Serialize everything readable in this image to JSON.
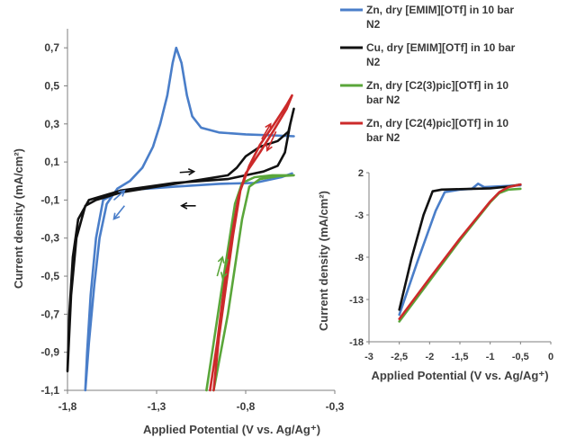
{
  "chart_data": [
    {
      "type": "line",
      "xlabel": "Applied Potential (V vs. Ag/Ag⁺)",
      "ylabel": "Current density (mA/cm²)",
      "xlim": [
        -1.8,
        -0.3
      ],
      "ylim": [
        -1.1,
        0.8
      ],
      "x_ticks": [
        -1.8,
        -1.3,
        -0.8,
        -0.3
      ],
      "x_tick_labels": [
        "-1,8",
        "-1,3",
        "-0,8",
        "-0,3"
      ],
      "y_ticks": [
        0.7,
        0.5,
        0.3,
        0.1,
        -0.1,
        -0.3,
        -0.5,
        -0.7,
        -0.9,
        -1.1
      ],
      "y_tick_labels": [
        "0,7",
        "0,5",
        "0,3",
        "0,1",
        "-0,1",
        "-0,3",
        "-0,5",
        "-0,7",
        "-0,9",
        "-1,1"
      ],
      "grid": false,
      "legend_position": "top-right",
      "series": [
        {
          "name": "Zn, dry [EMIM][OTf] in 10 bar N2",
          "color": "#4a7ec9",
          "points": [
            [
              -0.54,
              0.04
            ],
            [
              -0.6,
              0.02
            ],
            [
              -0.75,
              -0.01
            ],
            [
              -0.95,
              -0.015
            ],
            [
              -1.2,
              -0.03
            ],
            [
              -1.5,
              -0.05
            ],
            [
              -1.6,
              -0.1
            ],
            [
              -1.64,
              -0.3
            ],
            [
              -1.67,
              -0.6
            ],
            [
              -1.69,
              -0.9
            ],
            [
              -1.7,
              -1.1
            ],
            [
              -1.68,
              -0.85
            ],
            [
              -1.65,
              -0.55
            ],
            [
              -1.62,
              -0.3
            ],
            [
              -1.58,
              -0.12
            ],
            [
              -1.52,
              -0.04
            ],
            [
              -1.45,
              0.0
            ],
            [
              -1.38,
              0.07
            ],
            [
              -1.32,
              0.18
            ],
            [
              -1.28,
              0.3
            ],
            [
              -1.24,
              0.45
            ],
            [
              -1.21,
              0.62
            ],
            [
              -1.19,
              0.7
            ],
            [
              -1.16,
              0.62
            ],
            [
              -1.13,
              0.45
            ],
            [
              -1.1,
              0.34
            ],
            [
              -1.05,
              0.28
            ],
            [
              -0.95,
              0.255
            ],
            [
              -0.8,
              0.245
            ],
            [
              -0.65,
              0.24
            ],
            [
              -0.53,
              0.235
            ]
          ]
        },
        {
          "name": "Cu, dry [EMIM][OTf] in 10 bar N2",
          "color": "#111111",
          "points": [
            [
              -0.53,
              0.38
            ],
            [
              -0.56,
              0.26
            ],
            [
              -0.62,
              0.21
            ],
            [
              -0.72,
              0.18
            ],
            [
              -0.8,
              0.13
            ],
            [
              -0.85,
              0.07
            ],
            [
              -0.9,
              0.03
            ],
            [
              -1.1,
              0.0
            ],
            [
              -1.3,
              -0.03
            ],
            [
              -1.5,
              -0.06
            ],
            [
              -1.64,
              -0.1
            ],
            [
              -1.7,
              -0.13
            ],
            [
              -1.75,
              -0.3
            ],
            [
              -1.78,
              -0.6
            ],
            [
              -1.8,
              -1.0
            ],
            [
              -1.79,
              -0.7
            ],
            [
              -1.77,
              -0.4
            ],
            [
              -1.74,
              -0.2
            ],
            [
              -1.68,
              -0.1
            ],
            [
              -1.5,
              -0.05
            ],
            [
              -1.2,
              -0.01
            ],
            [
              -0.9,
              0.01
            ],
            [
              -0.8,
              0.03
            ],
            [
              -0.7,
              0.05
            ],
            [
              -0.62,
              0.08
            ],
            [
              -0.58,
              0.15
            ],
            [
              -0.55,
              0.3
            ],
            [
              -0.53,
              0.38
            ]
          ]
        },
        {
          "name": "Zn, dry [C2(3)pic][OTf] in 10 bar N2",
          "color": "#5aa63a",
          "points": [
            [
              -1.02,
              -1.1
            ],
            [
              -0.98,
              -0.85
            ],
            [
              -0.94,
              -0.6
            ],
            [
              -0.9,
              -0.36
            ],
            [
              -0.86,
              -0.12
            ],
            [
              -0.82,
              -0.01
            ],
            [
              -0.75,
              0.02
            ],
            [
              -0.65,
              0.03
            ],
            [
              -0.53,
              0.03
            ],
            [
              -0.62,
              0.025
            ],
            [
              -0.72,
              0.01
            ],
            [
              -0.78,
              -0.03
            ],
            [
              -0.82,
              -0.2
            ],
            [
              -0.86,
              -0.45
            ],
            [
              -0.9,
              -0.7
            ],
            [
              -0.95,
              -0.95
            ],
            [
              -0.98,
              -1.1
            ]
          ]
        },
        {
          "name": "Zn, dry [C2(4)pic][OTf] in 10 bar N2",
          "color": "#cc2a2a",
          "points": [
            [
              -1.0,
              -1.1
            ],
            [
              -0.96,
              -0.85
            ],
            [
              -0.92,
              -0.55
            ],
            [
              -0.88,
              -0.3
            ],
            [
              -0.84,
              -0.08
            ],
            [
              -0.8,
              0.04
            ],
            [
              -0.72,
              0.15
            ],
            [
              -0.64,
              0.27
            ],
            [
              -0.57,
              0.38
            ],
            [
              -0.54,
              0.45
            ],
            [
              -0.57,
              0.4
            ],
            [
              -0.64,
              0.3
            ],
            [
              -0.72,
              0.19
            ],
            [
              -0.78,
              0.08
            ],
            [
              -0.83,
              -0.05
            ],
            [
              -0.87,
              -0.28
            ],
            [
              -0.91,
              -0.55
            ],
            [
              -0.95,
              -0.82
            ],
            [
              -0.98,
              -1.1
            ]
          ]
        }
      ],
      "annotations": [
        {
          "shape": "arrow",
          "color": "#4a7ec9",
          "from": [
            -1.54,
            -0.1
          ],
          "to": [
            -1.48,
            -0.05
          ]
        },
        {
          "shape": "arrow",
          "color": "#4a7ec9",
          "from": [
            -1.48,
            -0.13
          ],
          "to": [
            -1.54,
            -0.2
          ]
        },
        {
          "shape": "arrow",
          "color": "#111111",
          "from": [
            -1.17,
            0.045
          ],
          "to": [
            -1.09,
            0.05
          ]
        },
        {
          "shape": "arrow",
          "color": "#111111",
          "from": [
            -1.08,
            -0.13
          ],
          "to": [
            -1.16,
            -0.13
          ]
        },
        {
          "shape": "arrow",
          "color": "#5aa63a",
          "from": [
            -0.96,
            -0.5
          ],
          "to": [
            -0.93,
            -0.4
          ]
        },
        {
          "shape": "arrow",
          "color": "#5aa63a",
          "from": [
            -0.9,
            -0.41
          ],
          "to": [
            -0.93,
            -0.51
          ]
        },
        {
          "shape": "arrow",
          "color": "#cc2a2a",
          "from": [
            -0.71,
            0.22
          ],
          "to": [
            -0.66,
            0.3
          ]
        },
        {
          "shape": "arrow",
          "color": "#cc2a2a",
          "from": [
            -0.63,
            0.26
          ],
          "to": [
            -0.68,
            0.16
          ]
        }
      ]
    },
    {
      "type": "line",
      "xlabel": "Applied Potential (V vs. Ag/Ag⁺)",
      "ylabel": "Current density (mA/cm²)",
      "xlim": [
        -3,
        0
      ],
      "ylim": [
        -18,
        2
      ],
      "x_ticks": [
        -3,
        -2.5,
        -2,
        -1.5,
        -1,
        -0.5,
        0
      ],
      "x_tick_labels": [
        "-3",
        "-2,5",
        "-2",
        "-1,5",
        "-1",
        "-0,5",
        "0"
      ],
      "y_ticks": [
        2,
        -3,
        -8,
        -13,
        -18
      ],
      "y_tick_labels": [
        "2",
        "-3",
        "-8",
        "-13",
        "-18"
      ],
      "grid": false,
      "series": [
        {
          "color": "#4a7ec9",
          "points": [
            [
              -2.5,
              -14.8
            ],
            [
              -2.2,
              -8.5
            ],
            [
              -1.9,
              -2.5
            ],
            [
              -1.75,
              -0.3
            ],
            [
              -1.5,
              0.0
            ],
            [
              -1.3,
              0.1
            ],
            [
              -1.2,
              0.7
            ],
            [
              -1.1,
              0.3
            ],
            [
              -0.8,
              0.4
            ],
            [
              -0.5,
              0.5
            ]
          ]
        },
        {
          "color": "#111111",
          "points": [
            [
              -2.5,
              -14.2
            ],
            [
              -2.3,
              -8.2
            ],
            [
              -2.1,
              -3.0
            ],
            [
              -1.95,
              -0.2
            ],
            [
              -1.8,
              0.0
            ],
            [
              -1.5,
              0.05
            ],
            [
              -1.0,
              0.15
            ],
            [
              -0.7,
              0.35
            ],
            [
              -0.5,
              0.6
            ]
          ]
        },
        {
          "color": "#5aa63a",
          "points": [
            [
              -2.5,
              -15.6
            ],
            [
              -2.0,
              -10.8
            ],
            [
              -1.5,
              -6.0
            ],
            [
              -1.0,
              -1.5
            ],
            [
              -0.85,
              -0.4
            ],
            [
              -0.7,
              0.0
            ],
            [
              -0.5,
              0.1
            ]
          ]
        },
        {
          "color": "#cc2a2a",
          "points": [
            [
              -2.5,
              -15.3
            ],
            [
              -2.0,
              -10.5
            ],
            [
              -1.5,
              -5.8
            ],
            [
              -1.0,
              -1.4
            ],
            [
              -0.85,
              -0.3
            ],
            [
              -0.7,
              0.3
            ],
            [
              -0.5,
              0.6
            ]
          ]
        }
      ]
    }
  ]
}
